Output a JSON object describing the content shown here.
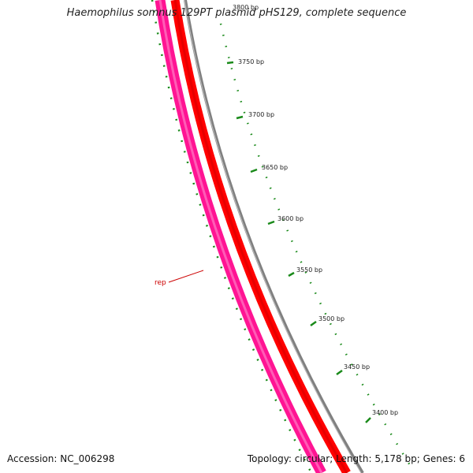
{
  "title": "Haemophilus somnus 129PT plasmid pHS129, complete sequence",
  "footer": {
    "accession": "Accession: NC_006298",
    "summary": "Topology: circular; Length: 5,178 bp; Genes: 6"
  },
  "ticks": [
    "3800 bp",
    "3750 bp",
    "3700 bp",
    "3650 bp",
    "3600 bp",
    "3550 bp",
    "3500 bp",
    "3450 bp",
    "3400 bp"
  ],
  "gene_label": "rep",
  "colors": {
    "backbone": "#808080",
    "gene_red": "#ff0000",
    "gene_pink": "#ff1493",
    "tick_green": "#1a8a1a",
    "label_red": "#cc0000"
  }
}
